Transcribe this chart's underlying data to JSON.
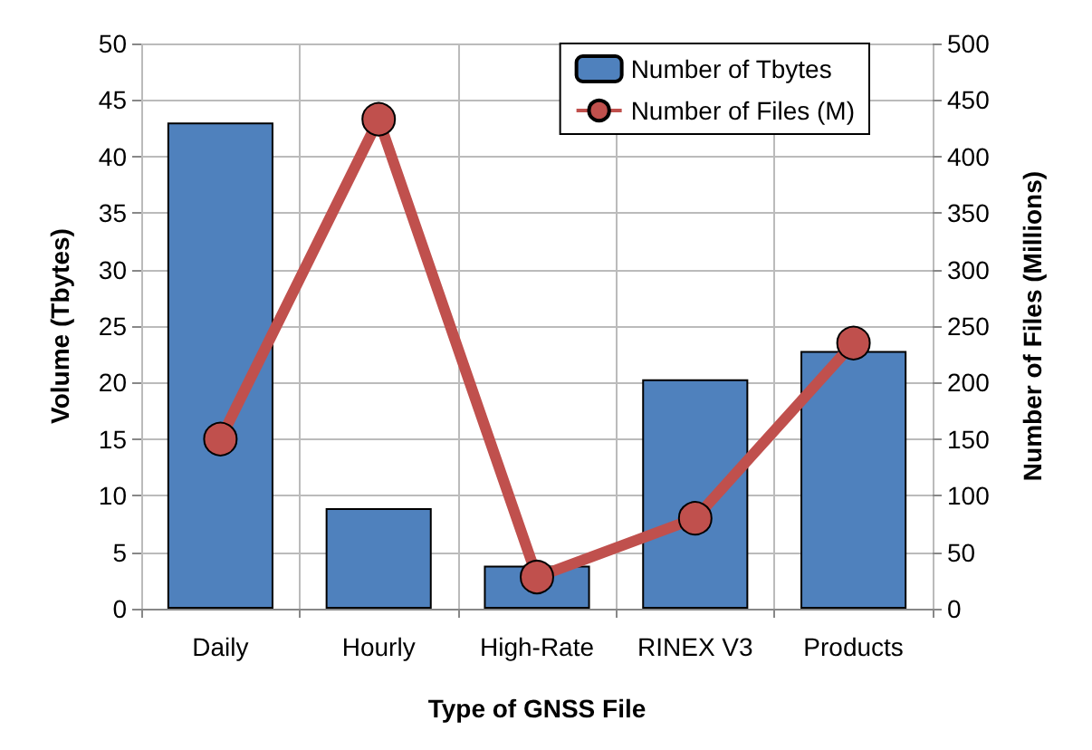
{
  "chart_data": {
    "type": "bar",
    "xlabel": "Type of GNSS File",
    "ylabel": "Volume (Tbytes)",
    "y2label": "Number of Files (Millions)",
    "categories": [
      "Daily",
      "Hourly",
      "High-Rate",
      "RINEX V3",
      "Products"
    ],
    "series": [
      {
        "name": "Number of Tbytes",
        "color": "#4f81bd",
        "values": [
          43,
          8.9,
          3.8,
          20.3,
          22.8
        ]
      },
      {
        "name": "Number of Files (M)",
        "type": "line",
        "axis": "y2",
        "color": "#c0504d",
        "marker": "circle",
        "values": [
          150,
          433,
          28,
          80,
          235
        ]
      }
    ],
    "ylim": [
      0,
      50
    ],
    "yticks": [
      0,
      5,
      10,
      15,
      20,
      25,
      30,
      35,
      40,
      45,
      50
    ],
    "y2lim": [
      0,
      500
    ],
    "y2ticks": [
      0,
      50,
      100,
      150,
      200,
      250,
      300,
      350,
      400,
      450,
      500
    ],
    "grid": true,
    "legend": "top right"
  }
}
